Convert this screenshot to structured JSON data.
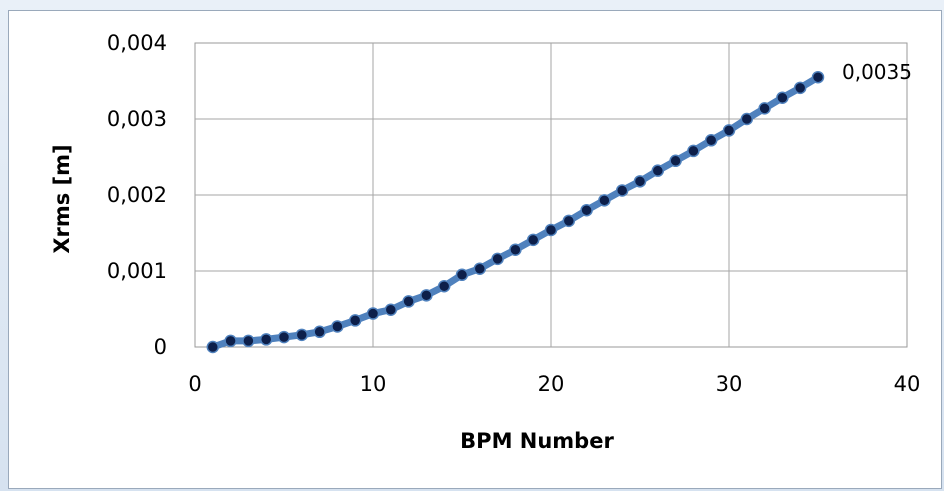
{
  "chart_data": {
    "type": "line",
    "title": "",
    "xlabel": "BPM Number",
    "ylabel": "Xrms [m]",
    "xlim": [
      0,
      40
    ],
    "ylim": [
      0,
      0.004
    ],
    "x_ticks": [
      0,
      10,
      20,
      30,
      40
    ],
    "x_tick_labels": [
      "0",
      "10",
      "20",
      "30",
      "40"
    ],
    "y_ticks": [
      0,
      0.001,
      0.002,
      0.003,
      0.004
    ],
    "y_tick_labels": [
      "0",
      "0,001",
      "0,002",
      "0,003",
      "0,004"
    ],
    "grid": true,
    "legend": "none",
    "line_color": "#4f81bd",
    "marker_color": "#0d1f4a",
    "series": [
      {
        "x": [
          1,
          2,
          3,
          4,
          5,
          6,
          7,
          8,
          9,
          10,
          11,
          12,
          13,
          14,
          15,
          16,
          17,
          18,
          19,
          20,
          21,
          22,
          23,
          24,
          25,
          26,
          27,
          28,
          29,
          30,
          31,
          32,
          33,
          34,
          35
        ],
        "values": [
          0.0,
          8e-05,
          8e-05,
          0.0001,
          0.00013,
          0.00016,
          0.0002,
          0.00027,
          0.00035,
          0.00044,
          0.00049,
          0.0006,
          0.00068,
          0.0008,
          0.00095,
          0.00103,
          0.00116,
          0.00128,
          0.00141,
          0.00154,
          0.00166,
          0.0018,
          0.00193,
          0.00206,
          0.00218,
          0.00232,
          0.00245,
          0.00258,
          0.00272,
          0.00285,
          0.003,
          0.00314,
          0.00328,
          0.00341,
          0.00355
        ]
      }
    ],
    "annotations": [
      {
        "label": "0,0035",
        "x": 35,
        "y": 0.00355
      }
    ]
  }
}
